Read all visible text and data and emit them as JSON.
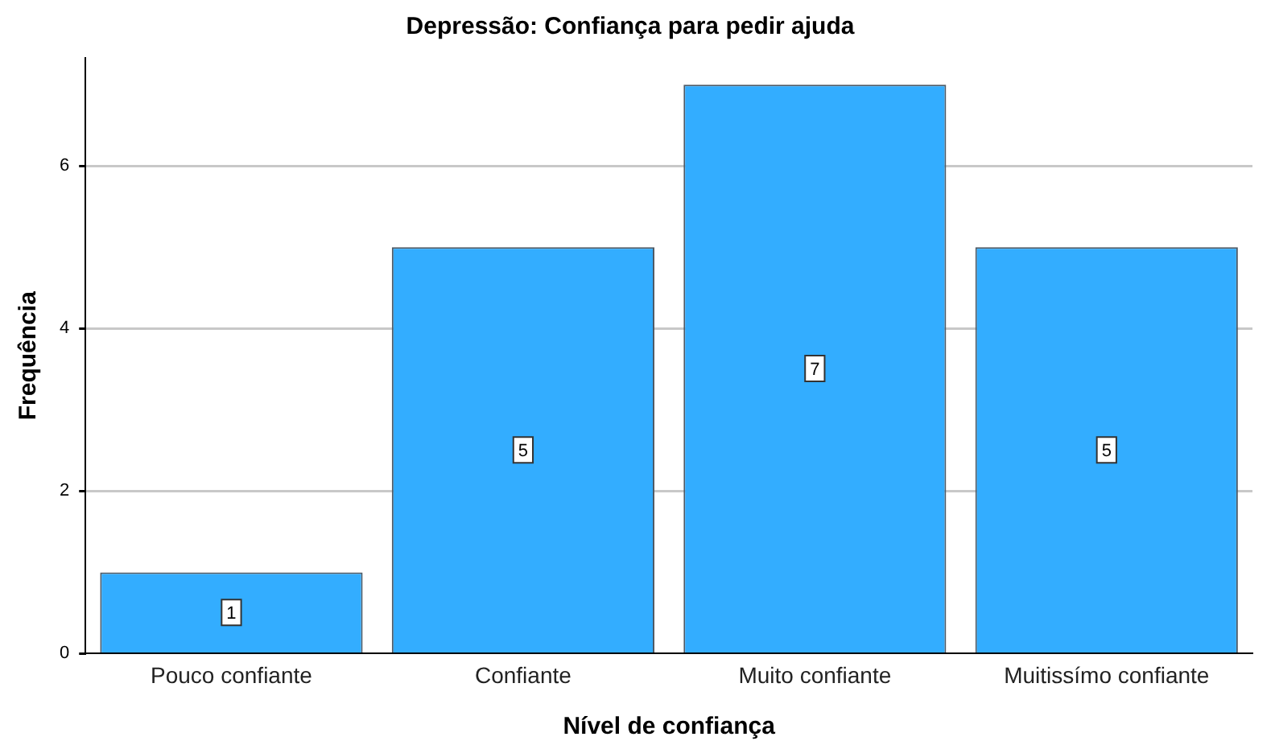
{
  "chart_data": {
    "type": "bar",
    "title": "Depressão: Confiança para pedir ajuda",
    "xlabel": "Nível de confiança",
    "ylabel": "Frequência",
    "categories": [
      "Pouco confiante",
      "Confiante",
      "Muito confiante",
      "Muitissímo confiante"
    ],
    "values": [
      1,
      5,
      7,
      5
    ],
    "color": "#33adff",
    "ylim": [
      0,
      7.33
    ],
    "yticks": [
      0,
      2,
      4,
      6
    ],
    "grid": "y",
    "data_labels": true,
    "legend": false
  }
}
